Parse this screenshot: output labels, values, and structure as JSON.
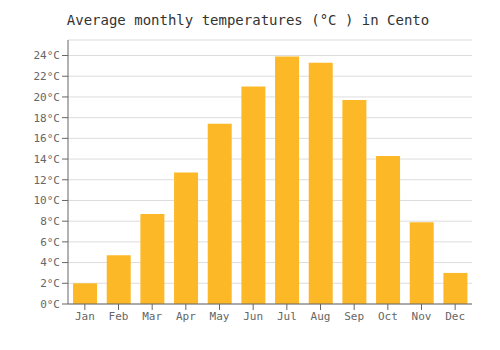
{
  "chart_data": {
    "type": "bar",
    "title": "Average monthly temperatures (°C ) in Cento",
    "categories": [
      "Jan",
      "Feb",
      "Mar",
      "Apr",
      "May",
      "Jun",
      "Jul",
      "Aug",
      "Sep",
      "Oct",
      "Nov",
      "Dec"
    ],
    "values": [
      2.0,
      4.7,
      8.7,
      12.7,
      17.4,
      21.0,
      23.9,
      23.3,
      19.7,
      14.3,
      7.9,
      3.0
    ],
    "color": "#FDB827",
    "ylim": [
      0,
      25.5
    ],
    "yticks": [
      {
        "value": 0,
        "label": "0°C"
      },
      {
        "value": 2,
        "label": "2°C"
      },
      {
        "value": 4,
        "label": "4°C"
      },
      {
        "value": 6,
        "label": "6°C"
      },
      {
        "value": 8,
        "label": "8°C"
      },
      {
        "value": 10,
        "label": "10°C"
      },
      {
        "value": 12,
        "label": "12°C"
      },
      {
        "value": 14,
        "label": "14°C"
      },
      {
        "value": 16,
        "label": "16°C"
      },
      {
        "value": 18,
        "label": "18°C"
      },
      {
        "value": 20,
        "label": "20°C"
      },
      {
        "value": 22,
        "label": "22°C"
      },
      {
        "value": 24,
        "label": "24°C"
      }
    ],
    "grid": true
  }
}
